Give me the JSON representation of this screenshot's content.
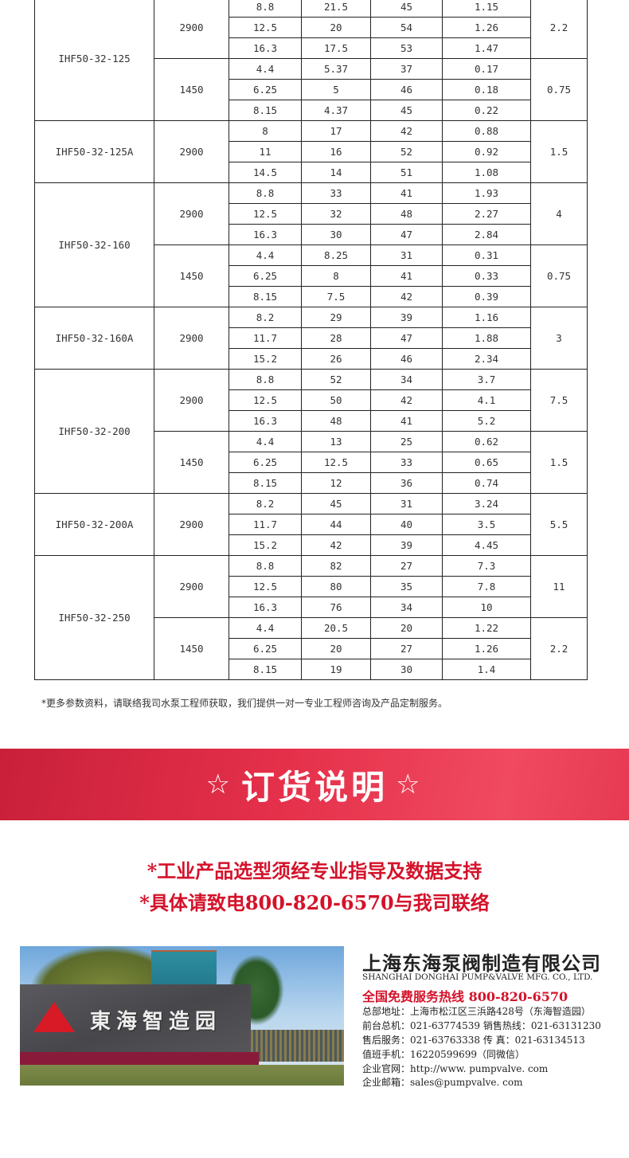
{
  "table": {
    "models": [
      {
        "model": "IHF50-32-125",
        "speeds": [
          {
            "speed": "2900",
            "motor_power": "2.2",
            "rows": [
              [
                "8.8",
                "21.5",
                "45",
                "1.15"
              ],
              [
                "12.5",
                "20",
                "54",
                "1.26"
              ],
              [
                "16.3",
                "17.5",
                "53",
                "1.47"
              ]
            ]
          },
          {
            "speed": "1450",
            "motor_power": "0.75",
            "rows": [
              [
                "4.4",
                "5.37",
                "37",
                "0.17"
              ],
              [
                "6.25",
                "5",
                "46",
                "0.18"
              ],
              [
                "8.15",
                "4.37",
                "45",
                "0.22"
              ]
            ]
          }
        ]
      },
      {
        "model": "IHF50-32-125A",
        "speeds": [
          {
            "speed": "2900",
            "motor_power": "1.5",
            "rows": [
              [
                "8",
                "17",
                "42",
                "0.88"
              ],
              [
                "11",
                "16",
                "52",
                "0.92"
              ],
              [
                "14.5",
                "14",
                "51",
                "1.08"
              ]
            ]
          }
        ]
      },
      {
        "model": "IHF50-32-160",
        "speeds": [
          {
            "speed": "2900",
            "motor_power": "4",
            "rows": [
              [
                "8.8",
                "33",
                "41",
                "1.93"
              ],
              [
                "12.5",
                "32",
                "48",
                "2.27"
              ],
              [
                "16.3",
                "30",
                "47",
                "2.84"
              ]
            ]
          },
          {
            "speed": "1450",
            "motor_power": "0.75",
            "rows": [
              [
                "4.4",
                "8.25",
                "31",
                "0.31"
              ],
              [
                "6.25",
                "8",
                "41",
                "0.33"
              ],
              [
                "8.15",
                "7.5",
                "42",
                "0.39"
              ]
            ]
          }
        ]
      },
      {
        "model": "IHF50-32-160A",
        "speeds": [
          {
            "speed": "2900",
            "motor_power": "3",
            "rows": [
              [
                "8.2",
                "29",
                "39",
                "1.16"
              ],
              [
                "11.7",
                "28",
                "47",
                "1.88"
              ],
              [
                "15.2",
                "26",
                "46",
                "2.34"
              ]
            ]
          }
        ]
      },
      {
        "model": "IHF50-32-200",
        "speeds": [
          {
            "speed": "2900",
            "motor_power": "7.5",
            "rows": [
              [
                "8.8",
                "52",
                "34",
                "3.7"
              ],
              [
                "12.5",
                "50",
                "42",
                "4.1"
              ],
              [
                "16.3",
                "48",
                "41",
                "5.2"
              ]
            ]
          },
          {
            "speed": "1450",
            "motor_power": "1.5",
            "rows": [
              [
                "4.4",
                "13",
                "25",
                "0.62"
              ],
              [
                "6.25",
                "12.5",
                "33",
                "0.65"
              ],
              [
                "8.15",
                "12",
                "36",
                "0.74"
              ]
            ]
          }
        ]
      },
      {
        "model": "IHF50-32-200A",
        "speeds": [
          {
            "speed": "2900",
            "motor_power": "5.5",
            "rows": [
              [
                "8.2",
                "45",
                "31",
                "3.24"
              ],
              [
                "11.7",
                "44",
                "40",
                "3.5"
              ],
              [
                "15.2",
                "42",
                "39",
                "4.45"
              ]
            ]
          }
        ]
      },
      {
        "model": "IHF50-32-250",
        "speeds": [
          {
            "speed": "2900",
            "motor_power": "11",
            "rows": [
              [
                "8.8",
                "82",
                "27",
                "7.3"
              ],
              [
                "12.5",
                "80",
                "35",
                "7.8"
              ],
              [
                "16.3",
                "76",
                "34",
                "10"
              ]
            ]
          },
          {
            "speed": "1450",
            "motor_power": "2.2",
            "rows": [
              [
                "4.4",
                "20.5",
                "20",
                "1.22"
              ],
              [
                "6.25",
                "20",
                "27",
                "1.26"
              ],
              [
                "8.15",
                "19",
                "30",
                "1.4"
              ]
            ]
          }
        ]
      }
    ]
  },
  "note": "*更多参数资料，请联络我司水泵工程师获取，我们提供一对一专业工程师咨询及产品定制服务。",
  "banner": {
    "star_icon": "☆",
    "title": "订货说明",
    "color": "#e0304a"
  },
  "requirements": [
    "*工业产品选型须经专业指导及数据支持",
    "*具体请致电800-820-6570与我司联络"
  ],
  "photo": {
    "sign_text": "東海智造园"
  },
  "company": {
    "name_cn": "上海东海泵阀制造有限公司",
    "name_en": "SHANGHAI DONGHAI PUMP&VALVE MFG. CO., LTD.",
    "hotline": "全国免费服务热线  800-820-6570",
    "lines": [
      "总部地址：上海市松江区三浜路428号（东海智造园）",
      "前台总机：021-63774539   销售热线：021-63131230",
      "售后服务：021-63763338   传      真：021-63134513",
      "值班手机：16220599699（同微信）",
      "企业官网：http://www. pumpvalve. com",
      "企业邮箱：sales@pumpvalve. com"
    ],
    "accent": "#d4122a"
  }
}
